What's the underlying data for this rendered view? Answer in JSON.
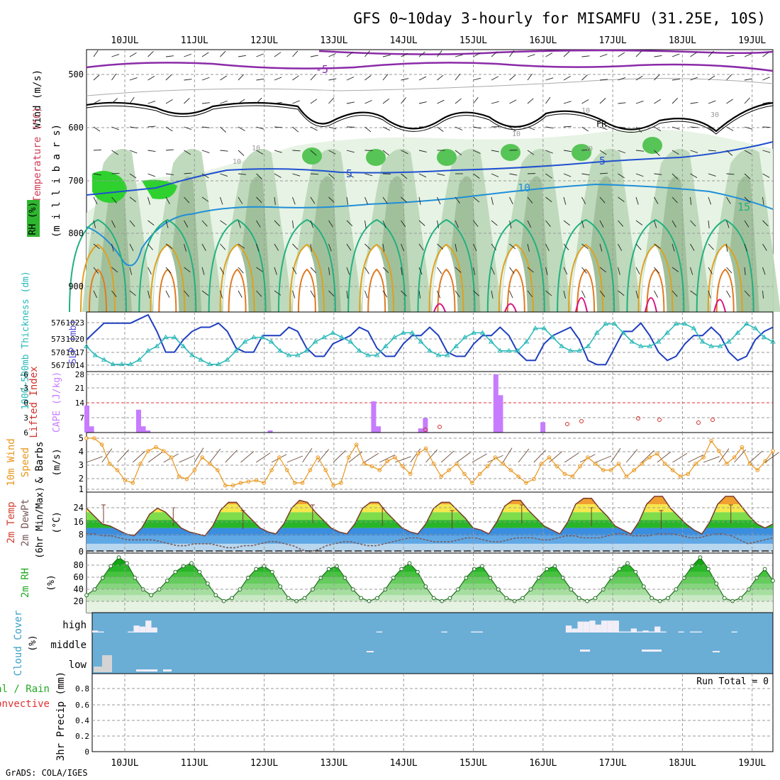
{
  "title": "GFS 0~10day 3-hourly for MISAMFU (31.25E, 10S)",
  "footer": "GrADS: COLA/IGES",
  "dates": [
    "10JUL",
    "11JUL",
    "12JUL",
    "13JUL",
    "14JUL",
    "15JUL",
    "16JUL",
    "17JUL",
    "18JUL",
    "19JUL"
  ],
  "colors": {
    "bg": "#ffffff",
    "grid": "#9a9a9a",
    "axis": "#000000",
    "rh_green": "#2fb52f",
    "cloud_blue": "#6aaed6",
    "slp": "#1f3fbf",
    "thick": "#28b8b8",
    "cape": "#c77cff",
    "li": "#d0302a",
    "wind": "#e8961c",
    "dew": "#7a5a5a",
    "rh2m": "#22bb22"
  },
  "panels": {
    "upper": {
      "label_wind": "Wind (m/s)",
      "label_temp": "Temperature (°C)",
      "label_rh": "RH (%)",
      "label_units": "(m i l l i b a r s)",
      "yticks": [
        "500",
        "600",
        "700",
        "800",
        "900"
      ],
      "contour_labels": [
        "-5",
        "FR",
        "5",
        "5",
        "10",
        "15",
        "10",
        "10",
        "30",
        "10",
        "30",
        "10"
      ]
    },
    "slp": {
      "label_thick": "1000~500mb Thickness (dm)",
      "label_slp": "SLP (mb)",
      "yticks_left": [
        "567",
        "570",
        "573",
        "576"
      ],
      "yticks_right": [
        "1014",
        "1017",
        "1020",
        "1023"
      ]
    },
    "cape": {
      "label_li": "Lifted Index",
      "label_cape": "CAPE (J/kg)",
      "yticks_left": [
        "6",
        "3",
        "0",
        "-3",
        "-6"
      ],
      "yticks_right": [
        "7",
        "14",
        "21",
        "28"
      ]
    },
    "wind10": {
      "label1": "10m Wind",
      "label2": "Speed",
      "label3": "& Barbs",
      "units": "(m/s)",
      "yticks": [
        "1",
        "2",
        "3",
        "4",
        "5"
      ]
    },
    "temp2m": {
      "label1": "2m Temp",
      "label2": "2m DewPt",
      "label3": "(6hr Min/Max)",
      "units": "(°C)",
      "yticks": [
        "0",
        "8",
        "16",
        "24"
      ]
    },
    "rh2m": {
      "label": "2m RH",
      "units": "(%)",
      "yticks": [
        "20",
        "40",
        "60",
        "80"
      ]
    },
    "cloud": {
      "label": "Cloud Cover",
      "units": "(%)",
      "levels": [
        "high",
        "middle",
        "low"
      ]
    },
    "precip": {
      "label1": "Total / Rain",
      "label2": "Convective",
      "label3": "3hr Precip (mm)",
      "run_total": "Run Total = 0",
      "yticks": [
        "0",
        "0.2",
        "0.4",
        "0.6",
        "0.8"
      ]
    }
  },
  "chart_data": {
    "type": "line",
    "title": "GFS 0~10day 3-hourly for MISAMFU (31.25E, 10S)",
    "x_labels": [
      "10JUL",
      "11JUL",
      "12JUL",
      "13JUL",
      "14JUL",
      "15JUL",
      "16JUL",
      "17JUL",
      "18JUL",
      "19JUL"
    ],
    "steps_per_day": 8,
    "series": [
      {
        "name": "SLP (mb)",
        "ylim": [
          1012,
          1025
        ],
        "values": [
          1019,
          1021,
          1023,
          1023,
          1023,
          1023,
          1024,
          1025,
          1021,
          1016,
          1016,
          1019,
          1021,
          1022,
          1022,
          1023,
          1021,
          1017,
          1016,
          1016,
          1020,
          1020,
          1020,
          1022,
          1021,
          1017,
          1015,
          1015,
          1018,
          1019,
          1020,
          1022,
          1021,
          1017,
          1015,
          1015,
          1018,
          1020,
          1020,
          1022,
          1020,
          1016,
          1015,
          1015,
          1018,
          1020,
          1020,
          1022,
          1020,
          1016,
          1014,
          1014,
          1018,
          1020,
          1021,
          1022,
          1019,
          1014,
          1013,
          1013,
          1017,
          1021,
          1021,
          1023,
          1020,
          1016,
          1014,
          1015,
          1018,
          1020,
          1020,
          1022,
          1020,
          1016,
          1014,
          1015,
          1019,
          1021,
          1022
        ]
      },
      {
        "name": "1000~500mb Thickness (dm)",
        "ylim": [
          566,
          578
        ],
        "values": [
          571,
          569,
          568,
          567,
          567,
          567,
          568,
          570,
          571,
          573,
          573,
          571,
          569,
          568,
          567,
          567,
          568,
          570,
          572,
          573,
          573,
          572,
          570,
          569,
          569,
          570,
          572,
          573,
          574,
          573,
          572,
          570,
          569,
          569,
          571,
          573,
          574,
          574,
          572,
          570,
          569,
          569,
          571,
          573,
          574,
          574,
          572,
          570,
          570,
          570,
          572,
          575,
          575,
          573,
          571,
          570,
          570,
          571,
          574,
          576,
          576,
          574,
          572,
          571,
          571,
          572,
          574,
          576,
          576,
          575,
          572,
          571,
          571,
          572,
          574,
          576,
          575,
          573,
          572
        ]
      },
      {
        "name": "CAPE (J/kg)",
        "ylim": [
          0,
          28
        ],
        "values": [
          13,
          3,
          0,
          0,
          0,
          0,
          0,
          0,
          0,
          0,
          0,
          11,
          3,
          1,
          0,
          0,
          0,
          0,
          0,
          0,
          0,
          0,
          0,
          0,
          0,
          0,
          0,
          0,
          0,
          0,
          0,
          0,
          0,
          0,
          0,
          0,
          0,
          0,
          0,
          1,
          0,
          0,
          0,
          0,
          0,
          0,
          0,
          0,
          0,
          0,
          0,
          0,
          0,
          0,
          0,
          0,
          0,
          0,
          0,
          0,
          0,
          15,
          3,
          0,
          0,
          0,
          0,
          0,
          0,
          0,
          0,
          2,
          7,
          0,
          0,
          0,
          0,
          0,
          0,
          0,
          0,
          0,
          0,
          0,
          0,
          0,
          0,
          28,
          18,
          0,
          0,
          0,
          0,
          0,
          0,
          0,
          0,
          5,
          0,
          0,
          0,
          0,
          0,
          0,
          0,
          0,
          0,
          0,
          0,
          0,
          0,
          0,
          0,
          0,
          0,
          0,
          0,
          0,
          0,
          0,
          0,
          0,
          0,
          0,
          0,
          0,
          0,
          0,
          0,
          0,
          0,
          0,
          0,
          0,
          0,
          0,
          0,
          0,
          0,
          0,
          0,
          0,
          0,
          0,
          0,
          0,
          0
        ]
      },
      {
        "name": "10m Wind Speed (m/s)",
        "ylim": [
          1,
          5
        ],
        "values": [
          5,
          5,
          4.5,
          3,
          2.5,
          1.7,
          1.5,
          3,
          4,
          4.3,
          4,
          3.5,
          2,
          1.8,
          2.5,
          3.5,
          3,
          2.5,
          1.3,
          1.3,
          1.5,
          1.6,
          1.7,
          1.5,
          2.5,
          3.5,
          2.5,
          1.5,
          1.5,
          2.5,
          3.5,
          2.5,
          1.3,
          1.5,
          3.5,
          4.5,
          3,
          2.8,
          2.5,
          3.2,
          3.5,
          2.8,
          2.2,
          3.8,
          4.2,
          3,
          2,
          2.5,
          3,
          2.2,
          1.5,
          2.2,
          2.8,
          3.5,
          3,
          2.5,
          2,
          1.5,
          1.8,
          3,
          3.5,
          2.8,
          2.2,
          2,
          2.8,
          3.5,
          3,
          2.5,
          2.5,
          3,
          2,
          2.5,
          3,
          3.5,
          3.8,
          3,
          2.5,
          2,
          2.2,
          3,
          3.5,
          4.8,
          4,
          3,
          3.5,
          4.3,
          3,
          2.5,
          3.2,
          4
        ]
      },
      {
        "name": "2m Temp (°C)",
        "ylim": [
          0,
          28
        ],
        "values": [
          22,
          18,
          14,
          13,
          11,
          9,
          8,
          12,
          19,
          22,
          20,
          16,
          12,
          10,
          9,
          8,
          13,
          21,
          25,
          25,
          20,
          16,
          12,
          10,
          9,
          14,
          22,
          26,
          25,
          20,
          16,
          12,
          10,
          9,
          14,
          22,
          25,
          25,
          20,
          16,
          12,
          10,
          9,
          14,
          22,
          25,
          25,
          21,
          17,
          12,
          11,
          9,
          15,
          23,
          26,
          26,
          21,
          17,
          13,
          11,
          9,
          15,
          24,
          27,
          27,
          22,
          18,
          13,
          11,
          9,
          15,
          24,
          28,
          28,
          22,
          18,
          14,
          11,
          9,
          15,
          24,
          28,
          28,
          23,
          18,
          14,
          12,
          14
        ]
      },
      {
        "name": "2m DewPt (°C)",
        "ylim": [
          0,
          28
        ],
        "values": [
          9,
          9,
          8,
          8,
          7,
          6,
          6,
          6,
          6,
          5,
          4,
          3,
          3,
          4,
          4,
          4,
          3,
          2,
          2,
          3,
          3,
          4,
          5,
          5,
          4,
          3,
          1,
          0,
          1,
          3,
          4,
          5,
          5,
          4,
          3,
          3,
          4,
          5,
          6,
          7,
          7,
          6,
          5,
          5,
          5,
          6,
          7,
          7,
          6,
          5,
          5,
          6,
          7,
          7,
          7,
          6,
          6,
          7,
          8,
          8,
          7,
          7,
          7,
          8,
          9,
          9,
          8,
          8,
          8,
          9,
          9,
          9,
          8,
          7,
          7,
          8,
          9,
          9,
          8,
          6,
          4,
          5,
          6,
          7
        ]
      },
      {
        "name": "2m RH (%)",
        "ylim": [
          0,
          100
        ],
        "values": [
          30,
          40,
          60,
          80,
          95,
          85,
          60,
          40,
          30,
          40,
          55,
          70,
          80,
          85,
          70,
          50,
          30,
          20,
          25,
          40,
          60,
          75,
          80,
          70,
          45,
          25,
          20,
          25,
          40,
          60,
          75,
          80,
          60,
          40,
          25,
          20,
          25,
          40,
          60,
          75,
          85,
          70,
          45,
          25,
          20,
          25,
          40,
          60,
          75,
          80,
          60,
          40,
          25,
          20,
          25,
          40,
          60,
          75,
          80,
          60,
          40,
          25,
          20,
          25,
          40,
          60,
          75,
          85,
          70,
          45,
          25,
          20,
          25,
          40,
          60,
          80,
          95,
          75,
          50,
          25,
          20,
          25,
          40,
          60,
          75,
          55
        ]
      },
      {
        "name": "Cloud Cover high (%)",
        "ylim": [
          0,
          100
        ],
        "values": [
          10,
          5,
          0,
          0,
          0,
          0,
          5,
          35,
          30,
          60,
          25,
          0,
          0,
          0,
          0,
          0,
          0,
          0,
          0,
          0,
          0,
          0,
          0,
          0,
          0,
          0,
          0,
          0,
          0,
          0,
          0,
          0,
          0,
          0,
          0,
          0,
          0,
          0,
          0,
          0,
          0,
          0,
          0,
          0,
          0,
          0,
          0,
          0,
          5,
          0,
          0,
          0,
          0,
          0,
          0,
          0,
          0,
          0,
          0,
          5,
          0,
          0,
          0,
          0,
          5,
          5,
          0,
          0,
          0,
          0,
          0,
          0,
          0,
          0,
          0,
          0,
          0,
          0,
          0,
          0,
          35,
          20,
          55,
          55,
          60,
          40,
          60,
          60,
          60,
          5,
          5,
          20,
          5,
          10,
          5,
          30,
          5,
          0,
          0,
          5,
          0,
          5,
          5,
          0,
          0,
          0,
          0,
          0,
          5,
          0,
          0,
          0,
          0,
          0,
          0
        ]
      },
      {
        "name": "3hr Precip (mm)",
        "ylim": [
          0,
          1
        ],
        "values": [
          0,
          0,
          0,
          0,
          0,
          0,
          0,
          0,
          0,
          0
        ]
      }
    ]
  }
}
